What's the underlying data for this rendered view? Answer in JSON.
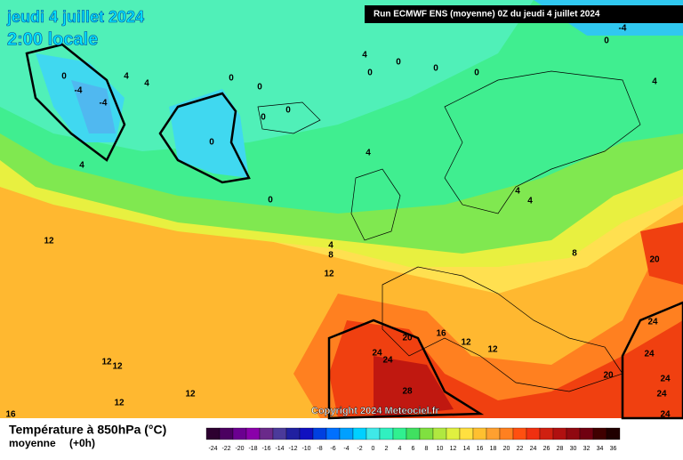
{
  "header": {
    "date": "jeudi 4 juillet 2024",
    "time": "2:00 locale",
    "run": "Run ECMWF ENS (moyenne) 0Z du jeudi 4 juillet 2024"
  },
  "copyright": "Copyright 2024 Meteociel.fr",
  "legend": {
    "title": "Température à 850hPa (°C)",
    "subtitle": "moyenne",
    "lead": "(+0h)",
    "scale": [
      {
        "value": -24,
        "color": "#2d0030"
      },
      {
        "value": -22,
        "color": "#4b0060"
      },
      {
        "value": -20,
        "color": "#6b0090"
      },
      {
        "value": -18,
        "color": "#8a00aa"
      },
      {
        "value": -16,
        "color": "#6a2a8a"
      },
      {
        "value": -14,
        "color": "#4b3a9a"
      },
      {
        "value": -12,
        "color": "#2020a0"
      },
      {
        "value": -10,
        "color": "#1010c0"
      },
      {
        "value": -8,
        "color": "#0040e0"
      },
      {
        "value": -6,
        "color": "#0070ff"
      },
      {
        "value": -4,
        "color": "#00a0ff"
      },
      {
        "value": -2,
        "color": "#00d0ff"
      },
      {
        "value": 0,
        "color": "#40e8e8"
      },
      {
        "value": 2,
        "color": "#30f0c0"
      },
      {
        "value": 4,
        "color": "#30f090"
      },
      {
        "value": 6,
        "color": "#40e060"
      },
      {
        "value": 8,
        "color": "#80e040"
      },
      {
        "value": 10,
        "color": "#b0e840"
      },
      {
        "value": 12,
        "color": "#e0f040"
      },
      {
        "value": 14,
        "color": "#ffe040"
      },
      {
        "value": 16,
        "color": "#ffc030"
      },
      {
        "value": 18,
        "color": "#ffa030"
      },
      {
        "value": 20,
        "color": "#ff8020"
      },
      {
        "value": 22,
        "color": "#ff5010"
      },
      {
        "value": 24,
        "color": "#f03010"
      },
      {
        "value": 26,
        "color": "#d02010"
      },
      {
        "value": 28,
        "color": "#b01010"
      },
      {
        "value": 30,
        "color": "#900810"
      },
      {
        "value": 32,
        "color": "#700010"
      },
      {
        "value": 34,
        "color": "#400000"
      },
      {
        "value": 36,
        "color": "#200000"
      }
    ]
  },
  "map_labels": [
    0,
    -4,
    -4,
    4,
    4,
    0,
    0,
    0,
    0,
    0,
    0,
    4,
    4,
    0,
    0,
    0,
    0,
    0,
    -4,
    4,
    4,
    4,
    4,
    8,
    12,
    4,
    8,
    12,
    20,
    24,
    20,
    16,
    12,
    12,
    24,
    24,
    24,
    20,
    24,
    24,
    28,
    12,
    12,
    12,
    12,
    16,
    24
  ]
}
